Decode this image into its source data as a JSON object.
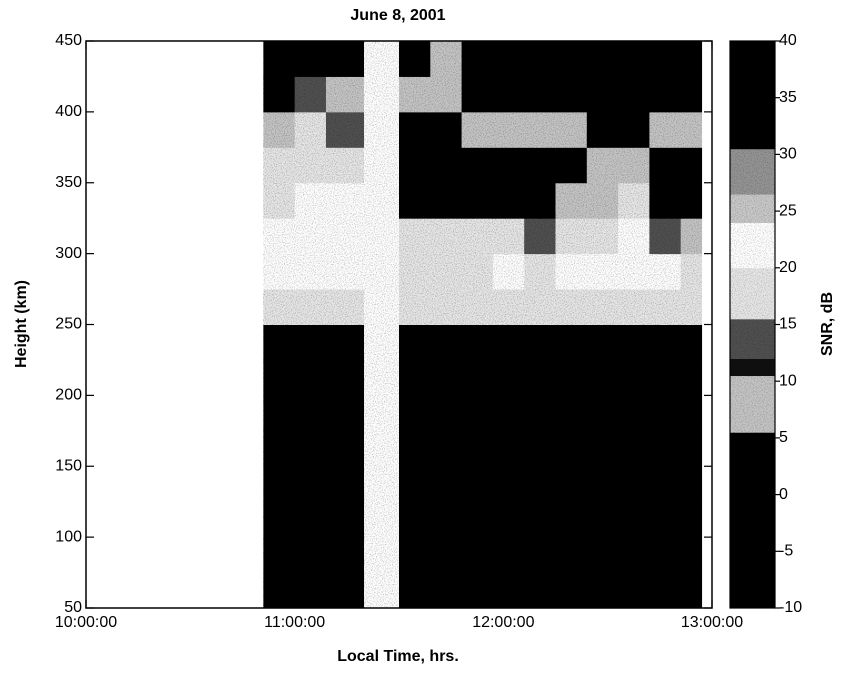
{
  "chart_data": {
    "type": "heatmap",
    "title": "June 8, 2001",
    "x_label": "Local Time, hrs.",
    "y_label": "Height (km)",
    "colorbar_label": "SNR, dB",
    "xlim": [
      10,
      13
    ],
    "xticks": [
      {
        "value": 10,
        "label": "10:00:00"
      },
      {
        "value": 11,
        "label": "11:00:00"
      },
      {
        "value": 12,
        "label": "12:00:00"
      },
      {
        "value": 13,
        "label": "13:00:00"
      }
    ],
    "ylim": [
      50,
      450
    ],
    "yticks": [
      50,
      100,
      150,
      200,
      250,
      300,
      350,
      400,
      450
    ],
    "zlim": [
      -10,
      40
    ],
    "zticks": [
      -10,
      -5,
      0,
      5,
      10,
      15,
      20,
      25,
      30,
      35,
      40
    ],
    "colorbar_bands": [
      {
        "from": -10,
        "to": 5.5,
        "color": "#000000"
      },
      {
        "from": 5.5,
        "to": 10.5,
        "color": "#c4c4c4"
      },
      {
        "from": 10.5,
        "to": 12,
        "color": "#101010"
      },
      {
        "from": 12,
        "to": 15.5,
        "color": "#505050"
      },
      {
        "from": 15.5,
        "to": 20,
        "color": "#e6e6e6"
      },
      {
        "from": 20,
        "to": 24,
        "color": "#ffffff"
      },
      {
        "from": 24,
        "to": 26.5,
        "color": "#c8c8c8"
      },
      {
        "from": 26.5,
        "to": 30.5,
        "color": "#949494"
      },
      {
        "from": 30.5,
        "to": 40,
        "color": "#000000"
      }
    ],
    "x_edges": [
      10.85,
      11.0,
      11.15,
      11.33,
      11.5,
      11.65,
      11.8,
      11.95,
      12.1,
      12.25,
      12.4,
      12.55,
      12.7,
      12.85,
      12.95
    ],
    "y_edges": [
      50,
      75,
      100,
      125,
      150,
      175,
      200,
      225,
      250,
      275,
      300,
      325,
      350,
      375,
      400,
      425,
      450
    ],
    "z": [
      [
        2,
        2,
        2,
        null,
        2,
        2,
        2,
        2,
        2,
        2,
        2,
        2,
        2,
        2
      ],
      [
        3,
        3,
        3,
        null,
        3,
        3,
        3,
        3,
        3,
        3,
        3,
        3,
        3,
        3
      ],
      [
        2,
        2,
        2,
        null,
        2,
        2,
        2,
        2,
        2,
        2,
        2,
        2,
        2,
        2
      ],
      [
        2,
        2,
        2,
        null,
        2,
        2,
        2,
        2,
        2,
        2,
        2,
        2,
        2,
        2
      ],
      [
        2,
        2,
        2,
        null,
        2,
        2,
        2,
        2,
        2,
        2,
        2,
        2,
        2,
        2
      ],
      [
        2,
        2,
        2,
        null,
        2,
        2,
        2,
        2,
        2,
        2,
        2,
        2,
        2,
        2
      ],
      [
        2,
        2,
        2,
        null,
        2,
        2,
        2,
        2,
        2,
        2,
        2,
        2,
        2,
        2
      ],
      [
        2,
        2,
        2,
        null,
        2,
        2,
        2,
        2,
        2,
        2,
        2,
        2,
        2,
        2
      ],
      [
        18,
        18,
        18,
        null,
        17,
        18,
        18,
        18,
        18,
        19,
        19,
        19,
        18,
        17
      ],
      [
        20,
        21,
        20,
        null,
        19,
        19,
        19,
        20,
        19,
        20,
        21,
        21,
        20,
        18
      ],
      [
        21,
        22,
        21,
        null,
        17,
        16,
        17,
        16,
        15,
        18,
        19,
        21,
        14,
        8
      ],
      [
        19,
        21,
        20,
        null,
        3,
        4,
        5,
        4,
        3,
        6,
        8,
        16,
        4,
        3
      ],
      [
        17,
        19,
        18,
        null,
        2,
        2,
        2,
        2,
        2,
        2,
        9,
        9,
        3,
        2
      ],
      [
        9,
        16,
        14,
        null,
        3,
        3,
        9,
        9,
        9,
        8,
        2,
        3,
        9,
        9
      ],
      [
        2,
        12,
        9,
        null,
        8,
        9,
        3,
        2,
        2,
        2,
        2,
        2,
        2,
        2
      ],
      [
        2,
        2,
        2,
        null,
        2,
        8,
        3,
        2,
        2,
        2,
        2,
        2,
        2,
        2
      ]
    ]
  }
}
